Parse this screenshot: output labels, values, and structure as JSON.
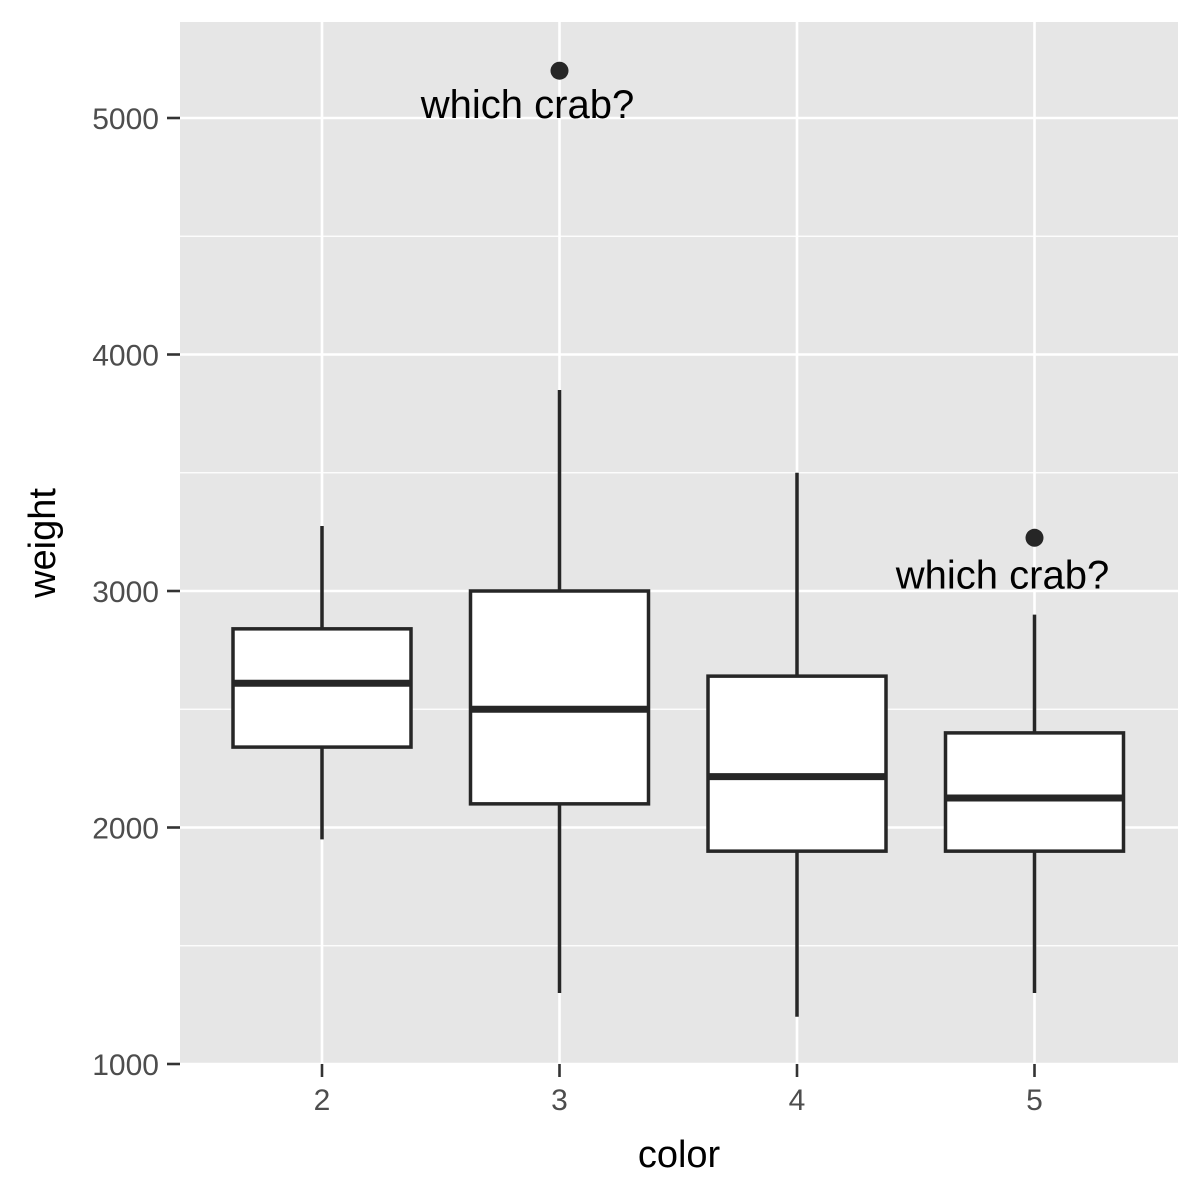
{
  "chart_data": {
    "type": "boxplot",
    "xlabel": "color",
    "ylabel": "weight",
    "categories": [
      "2",
      "3",
      "4",
      "5"
    ],
    "ylim": [
      1000,
      5400
    ],
    "yticks": [
      1000,
      2000,
      3000,
      4000,
      5000
    ],
    "y_minor_ticks": [
      1500,
      2500,
      3500,
      4500
    ],
    "grid": true,
    "boxes": [
      {
        "category": "2",
        "lower_whisker": 1950,
        "q1": 2340,
        "median": 2610,
        "q3": 2840,
        "upper_whisker": 3275,
        "outliers": []
      },
      {
        "category": "3",
        "lower_whisker": 1300,
        "q1": 2100,
        "median": 2500,
        "q3": 3000,
        "upper_whisker": 3850,
        "outliers": [
          5200
        ]
      },
      {
        "category": "4",
        "lower_whisker": 1200,
        "q1": 1900,
        "median": 2215,
        "q3": 2640,
        "upper_whisker": 3500,
        "outliers": []
      },
      {
        "category": "5",
        "lower_whisker": 1300,
        "q1": 1900,
        "median": 2125,
        "q3": 2400,
        "upper_whisker": 2900,
        "outliers": [
          3225
        ]
      }
    ],
    "annotations": [
      {
        "text": "which crab?",
        "x": "3",
        "y": 5060
      },
      {
        "text": "which crab?",
        "x": "5",
        "y": 3070
      }
    ],
    "colors": {
      "panel_background": "#e6e6e6",
      "grid": "#ffffff",
      "box_fill": "#ffffff",
      "box_line": "#262626",
      "tick_text": "#4d4d4d",
      "title_text": "#000000"
    }
  }
}
